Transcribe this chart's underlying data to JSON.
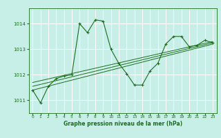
{
  "title": "Graphe pression niveau de la mer (hPa)",
  "bg_color": "#c8eee8",
  "grid_color": "#ffffff",
  "line_color": "#1a6e1a",
  "marker_color": "#1a6e1a",
  "xlim": [
    -0.5,
    23.5
  ],
  "ylim": [
    1010.5,
    1014.6
  ],
  "yticks": [
    1011,
    1012,
    1013,
    1014
  ],
  "xticks": [
    0,
    1,
    2,
    3,
    4,
    5,
    6,
    7,
    8,
    9,
    10,
    11,
    12,
    13,
    14,
    15,
    16,
    17,
    18,
    19,
    20,
    21,
    22,
    23
  ],
  "series1_x": [
    0,
    1,
    2,
    3,
    4,
    5,
    6,
    7,
    8,
    9,
    10,
    11,
    12,
    13,
    14,
    15,
    16,
    17,
    18,
    19,
    20,
    21,
    22,
    23
  ],
  "series1_y": [
    1011.4,
    1010.9,
    1011.55,
    1011.85,
    1011.95,
    1012.0,
    1014.0,
    1013.65,
    1014.15,
    1014.1,
    1013.0,
    1012.45,
    1012.05,
    1011.6,
    1011.6,
    1012.15,
    1012.45,
    1013.2,
    1013.5,
    1013.5,
    1013.1,
    1013.15,
    1013.35,
    1013.25
  ],
  "series2_x": [
    0,
    23
  ],
  "series2_y": [
    1011.7,
    1013.3
  ],
  "series3_x": [
    0,
    23
  ],
  "series3_y": [
    1011.55,
    1013.25
  ],
  "series4_x": [
    0,
    23
  ],
  "series4_y": [
    1011.4,
    1013.2
  ]
}
